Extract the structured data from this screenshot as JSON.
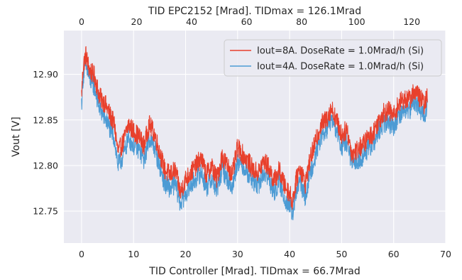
{
  "chart_data": {
    "type": "line",
    "title": "TID EPC2152 [Mrad]. TIDmax = 126.1Mrad",
    "xlabel": "TID Controller [Mrad]. TIDmax = 66.7Mrad",
    "ylabel": "Vout [V]",
    "xlim": [
      -3.4,
      70
    ],
    "ylim": [
      12.715,
      12.948
    ],
    "xticks": [
      0,
      10,
      20,
      30,
      40,
      50,
      60,
      70
    ],
    "xtick_labels": [
      "0",
      "10",
      "20",
      "30",
      "40",
      "50",
      "60",
      "70"
    ],
    "yticks": [
      12.75,
      12.8,
      12.85,
      12.9
    ],
    "ytick_labels": [
      "12.75",
      "12.80",
      "12.85",
      "12.90"
    ],
    "top_axis": {
      "ticks": [
        0,
        20,
        40,
        60,
        80,
        100,
        120
      ],
      "tick_labels": [
        "0",
        "20",
        "40",
        "60",
        "80",
        "100",
        "120"
      ],
      "max": 126.1,
      "bottom_max": 66.7
    },
    "grid": true,
    "legend_position": "top-right",
    "colors": {
      "background": "#eaeaf2",
      "grid": "#ffffff"
    },
    "series": [
      {
        "name": "Iout=8A. DoseRate = 1.0Mrad/h (Si)",
        "color": "#e8402c",
        "noise": 0.011,
        "x": [
          0,
          0.3,
          0.8,
          1.5,
          2.5,
          3.5,
          4.5,
          5.5,
          6.3,
          7,
          8,
          9,
          10,
          11,
          12,
          13,
          14,
          15,
          16,
          17,
          18,
          19,
          20,
          21,
          22,
          23,
          24,
          25,
          26,
          27,
          28,
          29,
          30,
          31,
          32,
          33,
          34,
          35,
          36,
          37,
          38,
          39,
          40,
          40.5,
          41,
          41.5,
          42,
          43,
          44,
          45,
          46,
          47,
          48,
          49,
          50,
          51,
          52,
          53,
          54,
          55,
          56,
          57,
          58,
          59,
          60,
          61,
          62,
          63,
          64,
          65,
          66,
          66.5
        ],
        "y": [
          12.878,
          12.908,
          12.922,
          12.905,
          12.898,
          12.875,
          12.868,
          12.855,
          12.845,
          12.815,
          12.825,
          12.845,
          12.838,
          12.832,
          12.822,
          12.845,
          12.835,
          12.815,
          12.795,
          12.79,
          12.795,
          12.77,
          12.785,
          12.792,
          12.8,
          12.808,
          12.79,
          12.8,
          12.785,
          12.81,
          12.8,
          12.79,
          12.82,
          12.812,
          12.805,
          12.795,
          12.792,
          12.805,
          12.798,
          12.783,
          12.795,
          12.778,
          12.77,
          12.76,
          12.775,
          12.79,
          12.798,
          12.78,
          12.808,
          12.826,
          12.845,
          12.85,
          12.863,
          12.85,
          12.833,
          12.84,
          12.812,
          12.818,
          12.822,
          12.83,
          12.835,
          12.848,
          12.858,
          12.86,
          12.855,
          12.868,
          12.873,
          12.872,
          12.882,
          12.875,
          12.866,
          12.878
        ]
      },
      {
        "name": "Iout=4A. DoseRate = 1.0Mrad/h (Si)",
        "color": "#4c9bd4",
        "noise": 0.011,
        "x": [
          0,
          0.3,
          0.8,
          1.5,
          2.5,
          3.5,
          4.5,
          5.5,
          6.3,
          7,
          8,
          9,
          10,
          11,
          12,
          13,
          14,
          15,
          16,
          17,
          18,
          19,
          20,
          21,
          22,
          23,
          24,
          25,
          26,
          27,
          28,
          29,
          30,
          31,
          32,
          33,
          34,
          35,
          36,
          37,
          38,
          39,
          40,
          40.5,
          41,
          41.5,
          42,
          43,
          44,
          45,
          46,
          47,
          48,
          49,
          50,
          51,
          52,
          53,
          54,
          55,
          56,
          57,
          58,
          59,
          60,
          61,
          62,
          63,
          64,
          65,
          66,
          66.5
        ],
        "y": [
          12.868,
          12.898,
          12.91,
          12.895,
          12.886,
          12.862,
          12.852,
          12.84,
          12.83,
          12.8,
          12.81,
          12.83,
          12.822,
          12.818,
          12.806,
          12.83,
          12.82,
          12.8,
          12.78,
          12.775,
          12.78,
          12.758,
          12.77,
          12.778,
          12.786,
          12.793,
          12.775,
          12.786,
          12.772,
          12.796,
          12.786,
          12.776,
          12.806,
          12.8,
          12.792,
          12.782,
          12.778,
          12.792,
          12.785,
          12.77,
          12.782,
          12.765,
          12.755,
          12.746,
          12.76,
          12.775,
          12.783,
          12.766,
          12.793,
          12.812,
          12.832,
          12.838,
          12.85,
          12.838,
          12.82,
          12.826,
          12.8,
          12.806,
          12.81,
          12.818,
          12.823,
          12.836,
          12.845,
          12.847,
          12.843,
          12.856,
          12.86,
          12.86,
          12.87,
          12.862,
          12.856,
          12.866
        ]
      }
    ]
  }
}
